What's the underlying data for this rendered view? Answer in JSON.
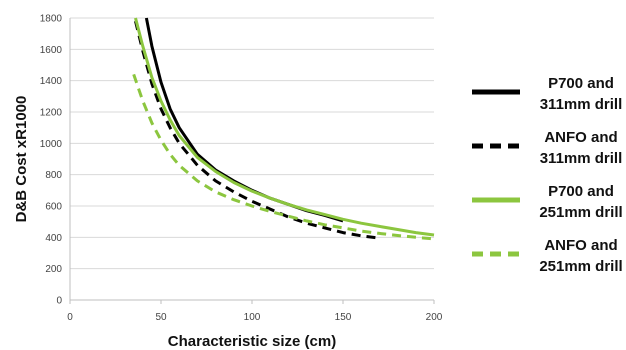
{
  "chart_data": {
    "type": "line",
    "xlabel": "Characteristic size (cm)",
    "ylabel": "D&B Cost xR1000",
    "xlim": [
      0,
      200
    ],
    "ylim": [
      0,
      1800
    ],
    "x_ticks": [
      "0",
      "50",
      "100",
      "150",
      "200"
    ],
    "y_ticks": [
      "0",
      "200",
      "400",
      "600",
      "800",
      "1000",
      "1200",
      "1400",
      "1600",
      "1800"
    ],
    "grid": "horizontal",
    "legend": "right",
    "series": [
      {
        "name": "P700 and 311mm drill",
        "legend_lines": [
          "P700 and",
          "311mm drill"
        ],
        "color": "#000000",
        "dash": "solid",
        "x": [
          42,
          45,
          50,
          55,
          60,
          70,
          80,
          90,
          100,
          110,
          120,
          130,
          140,
          150
        ],
        "y": [
          1800,
          1620,
          1390,
          1220,
          1100,
          930,
          830,
          760,
          700,
          650,
          610,
          570,
          540,
          505
        ]
      },
      {
        "name": "ANFO and 311mm drill",
        "legend_lines": [
          "ANFO and",
          "311mm drill"
        ],
        "color": "#000000",
        "dash": "dashed",
        "x": [
          36,
          40,
          45,
          50,
          55,
          60,
          70,
          80,
          90,
          100,
          110,
          120,
          130,
          140,
          150,
          160,
          170
        ],
        "y": [
          1780,
          1590,
          1380,
          1220,
          1100,
          1000,
          860,
          760,
          690,
          630,
          580,
          530,
          490,
          460,
          430,
          410,
          395
        ]
      },
      {
        "name": "P700 and 251mm drill",
        "legend_lines": [
          "P700 and",
          "251mm drill"
        ],
        "color": "#8CC63F",
        "dash": "solid",
        "x": [
          36,
          40,
          45,
          50,
          55,
          60,
          70,
          80,
          90,
          100,
          110,
          120,
          130,
          140,
          150,
          160,
          170,
          180,
          190,
          200
        ],
        "y": [
          1800,
          1620,
          1420,
          1270,
          1150,
          1050,
          910,
          820,
          750,
          695,
          650,
          610,
          575,
          545,
          515,
          490,
          470,
          450,
          430,
          415
        ]
      },
      {
        "name": "ANFO and 251mm drill",
        "legend_lines": [
          "ANFO and",
          "251mm drill"
        ],
        "color": "#8CC63F",
        "dash": "dashed",
        "x": [
          35,
          40,
          45,
          50,
          55,
          60,
          70,
          80,
          90,
          100,
          110,
          120,
          130,
          140,
          150,
          160,
          170,
          180,
          190,
          200
        ],
        "y": [
          1440,
          1270,
          1130,
          1020,
          930,
          860,
          760,
          690,
          640,
          600,
          565,
          535,
          505,
          480,
          460,
          440,
          425,
          412,
          400,
          390
        ]
      }
    ]
  }
}
